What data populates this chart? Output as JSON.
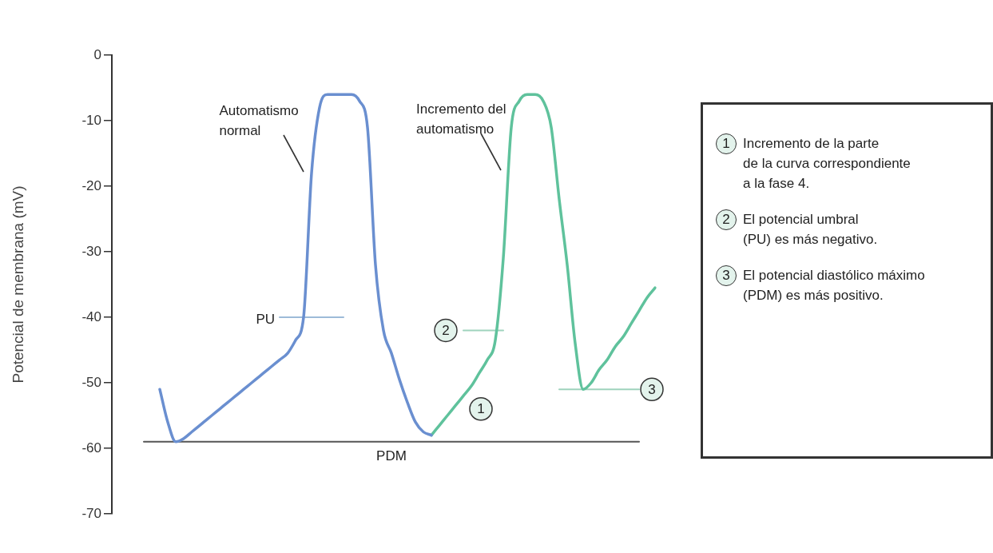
{
  "chart_data": {
    "type": "line",
    "ylabel": "Potencial de membrana (mV)",
    "ylim": [
      -70,
      0
    ],
    "yticks": [
      0,
      -10,
      -20,
      -30,
      -40,
      -50,
      -60,
      -70
    ],
    "tick_labels": "y",
    "legend": false,
    "categories": [
      null,
      null,
      null,
      null,
      null,
      null,
      null,
      null,
      null,
      null,
      null,
      null,
      null,
      null,
      null,
      null,
      null,
      null,
      null,
      null,
      null,
      null,
      null,
      null,
      null,
      null,
      null,
      null,
      null,
      null,
      null,
      null,
      null,
      null,
      null,
      null,
      null,
      null,
      null,
      null,
      null,
      null,
      null,
      null,
      null,
      null,
      null,
      null,
      null,
      null,
      null,
      null,
      null,
      null,
      null,
      null,
      null,
      null,
      null,
      null,
      null,
      null,
      null,
      null,
      null,
      null,
      null,
      null,
      null
    ],
    "series": [
      {
        "name": "Automatismo normal",
        "color": "#6a8fd0",
        "values": [
          null,
          null,
          null,
          null,
          null,
          null,
          -51,
          -56,
          -59,
          -58.5,
          -57.5,
          -56.5,
          -55.5,
          -54.5,
          -53.5,
          -52.5,
          -51.5,
          -50.5,
          -49.5,
          -48.5,
          -47.5,
          -46.5,
          -45.5,
          -43.5,
          -40,
          -18,
          -8,
          -6,
          -6,
          -6,
          -6,
          -7,
          -11,
          -32,
          -42,
          -45.5,
          -49.5,
          -53,
          -56,
          -57.5,
          -58,
          null,
          null,
          null,
          null,
          null,
          null,
          null,
          null,
          null,
          null,
          null,
          null,
          null,
          null,
          null,
          null,
          null,
          null,
          null,
          null,
          null,
          null,
          null,
          null,
          null,
          null,
          null,
          null
        ]
      },
      {
        "name": "Incremento del automatismo",
        "color": "#5fc29c",
        "values": [
          null,
          null,
          null,
          null,
          null,
          null,
          null,
          null,
          null,
          null,
          null,
          null,
          null,
          null,
          null,
          null,
          null,
          null,
          null,
          null,
          null,
          null,
          null,
          null,
          null,
          null,
          null,
          null,
          null,
          null,
          null,
          null,
          null,
          null,
          null,
          null,
          null,
          null,
          null,
          null,
          -58,
          -56.5,
          -55,
          -53.5,
          -52,
          -50.5,
          -48.5,
          -46.5,
          -43.5,
          -31,
          -11,
          -7,
          -6,
          -6,
          -7,
          -11,
          -22,
          -32,
          -44,
          -51,
          -50,
          -48,
          -46.5,
          -44.5,
          -43,
          -41,
          -39,
          -37,
          -35.5
        ]
      },
      {
        "name": "PU",
        "color": "#9dbbd8",
        "values": [
          null,
          null,
          null,
          null,
          null,
          null,
          null,
          null,
          null,
          null,
          null,
          null,
          null,
          null,
          null,
          null,
          null,
          null,
          null,
          null,
          null,
          -40,
          -40,
          -40,
          -40,
          -40,
          -40,
          -40,
          -40,
          -40,
          null,
          null,
          null,
          null,
          null,
          null,
          null,
          null,
          null,
          null,
          null,
          null,
          null,
          null,
          null,
          null,
          null,
          null,
          null,
          null,
          null,
          null,
          null,
          null,
          null,
          null,
          null,
          null,
          null,
          null,
          null,
          null,
          null,
          null,
          null,
          null,
          null,
          null,
          null
        ]
      },
      {
        "name": "2",
        "color": "#9fd3bd",
        "values": [
          null,
          null,
          null,
          null,
          null,
          null,
          null,
          null,
          null,
          null,
          null,
          null,
          null,
          null,
          null,
          null,
          null,
          null,
          null,
          null,
          null,
          null,
          null,
          null,
          null,
          null,
          null,
          null,
          null,
          null,
          null,
          null,
          null,
          null,
          null,
          null,
          null,
          null,
          null,
          null,
          null,
          null,
          null,
          null,
          -42,
          -42,
          -42,
          -42,
          -42,
          -42,
          null,
          null,
          null,
          null,
          null,
          null,
          null,
          null,
          null,
          null,
          null,
          null,
          null,
          null,
          null,
          null,
          null,
          null,
          null
        ]
      },
      {
        "name": "3",
        "color": "#9fd3bd",
        "values": [
          null,
          null,
          null,
          null,
          null,
          null,
          null,
          null,
          null,
          null,
          null,
          null,
          null,
          null,
          null,
          null,
          null,
          null,
          null,
          null,
          null,
          null,
          null,
          null,
          null,
          null,
          null,
          null,
          null,
          null,
          null,
          null,
          null,
          null,
          null,
          null,
          null,
          null,
          null,
          null,
          null,
          null,
          null,
          null,
          null,
          null,
          null,
          null,
          null,
          null,
          null,
          null,
          null,
          null,
          null,
          null,
          -51,
          -51,
          -51,
          -51,
          -51,
          -51,
          -51,
          -51,
          -51,
          -51,
          -51,
          null,
          null
        ]
      },
      {
        "name": "PDM",
        "color": "#555555",
        "values": [
          null,
          null,
          null,
          null,
          -59,
          -59,
          -59,
          -59,
          -59,
          -59,
          -59,
          -59,
          -59,
          -59,
          -59,
          -59,
          -59,
          -59,
          -59,
          -59,
          -59,
          -59,
          -59,
          -59,
          -59,
          -59,
          -59,
          -59,
          -59,
          -59,
          -59,
          -59,
          -59,
          -59,
          -59,
          -59,
          -59,
          -59,
          -59,
          -59,
          -59,
          -59,
          -59,
          -59,
          -59,
          -59,
          -59,
          -59,
          -59,
          -59,
          -59,
          -59,
          -59,
          -59,
          -59,
          -59,
          -59,
          -59,
          -59,
          -59,
          -59,
          -59,
          -59,
          -59,
          -59,
          -59,
          -59,
          null,
          null
        ]
      }
    ],
    "annotations": [
      "1",
      "1",
      "Incremento de la parte\nde la curva correspondiente\na la fase 4.",
      "2",
      "El potencial umbral\n(PU) es más negativo.",
      "3",
      "El potencial diastólico máximo\n(PDM) es más positivo."
    ]
  }
}
